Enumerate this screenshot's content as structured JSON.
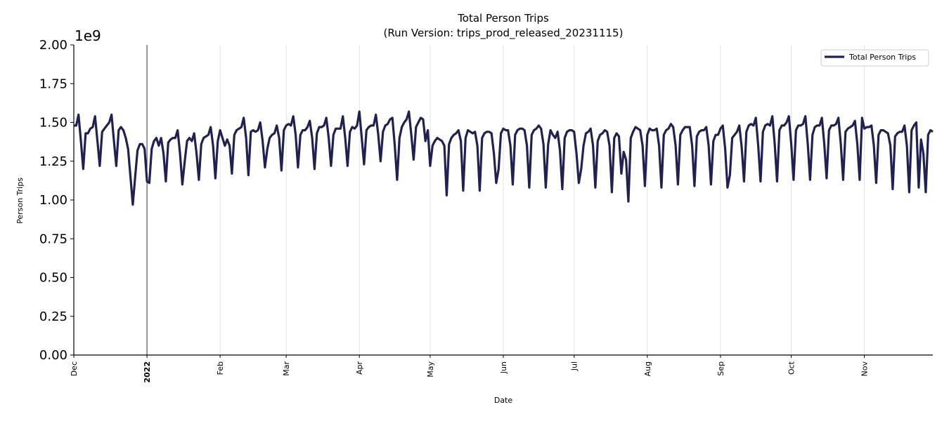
{
  "chart_data": {
    "type": "line",
    "title": "Total Person Trips",
    "subtitle": "(Run Version: trips_prod_released_20231115)",
    "xlabel": "Date",
    "ylabel": "Person Trips",
    "y_offset_label": "1e9",
    "ylim": [
      0,
      2.0
    ],
    "yticks": [
      "0.00",
      "0.25",
      "0.50",
      "0.75",
      "1.00",
      "1.25",
      "1.50",
      "1.75",
      "2.00"
    ],
    "xlim": [
      "2021-12-01",
      "2022-11-30"
    ],
    "xticks": [
      {
        "date": "2021-12-01",
        "label": "Dec",
        "bold": false
      },
      {
        "date": "2022-01-01",
        "label": "2022",
        "bold": true
      },
      {
        "date": "2022-02-01",
        "label": "Feb",
        "bold": false
      },
      {
        "date": "2022-03-01",
        "label": "Mar",
        "bold": false
      },
      {
        "date": "2022-04-01",
        "label": "Apr",
        "bold": false
      },
      {
        "date": "2022-05-01",
        "label": "May",
        "bold": false
      },
      {
        "date": "2022-06-01",
        "label": "Jun",
        "bold": false
      },
      {
        "date": "2022-07-01",
        "label": "Jul",
        "bold": false
      },
      {
        "date": "2022-08-01",
        "label": "Aug",
        "bold": false
      },
      {
        "date": "2022-09-01",
        "label": "Sep",
        "bold": false
      },
      {
        "date": "2022-10-01",
        "label": "Oct",
        "bold": false
      },
      {
        "date": "2022-11-01",
        "label": "Nov",
        "bold": false
      }
    ],
    "grid": "vertical-monthly",
    "legend": "top-right",
    "series": [
      {
        "name": "Total Person Trips",
        "color": "#1f2152",
        "start_date": "2021-12-01",
        "frequency": "daily",
        "values": [
          1.48,
          1.48,
          1.55,
          1.38,
          1.2,
          1.43,
          1.43,
          1.46,
          1.47,
          1.54,
          1.38,
          1.22,
          1.44,
          1.46,
          1.48,
          1.5,
          1.55,
          1.38,
          1.22,
          1.45,
          1.47,
          1.45,
          1.4,
          1.33,
          1.15,
          0.97,
          1.15,
          1.32,
          1.36,
          1.36,
          1.33,
          1.12,
          1.11,
          1.33,
          1.38,
          1.4,
          1.35,
          1.4,
          1.3,
          1.12,
          1.37,
          1.39,
          1.4,
          1.4,
          1.45,
          1.3,
          1.1,
          1.25,
          1.38,
          1.4,
          1.38,
          1.43,
          1.3,
          1.13,
          1.36,
          1.4,
          1.41,
          1.42,
          1.47,
          1.35,
          1.14,
          1.38,
          1.45,
          1.4,
          1.35,
          1.39,
          1.35,
          1.17,
          1.42,
          1.45,
          1.46,
          1.47,
          1.53,
          1.4,
          1.16,
          1.44,
          1.45,
          1.44,
          1.45,
          1.5,
          1.38,
          1.21,
          1.33,
          1.4,
          1.42,
          1.43,
          1.48,
          1.4,
          1.19,
          1.45,
          1.48,
          1.49,
          1.48,
          1.54,
          1.42,
          1.21,
          1.42,
          1.45,
          1.45,
          1.47,
          1.51,
          1.4,
          1.2,
          1.43,
          1.47,
          1.47,
          1.48,
          1.53,
          1.4,
          1.22,
          1.42,
          1.46,
          1.46,
          1.46,
          1.54,
          1.4,
          1.22,
          1.44,
          1.47,
          1.46,
          1.48,
          1.57,
          1.4,
          1.23,
          1.45,
          1.47,
          1.48,
          1.48,
          1.55,
          1.42,
          1.25,
          1.44,
          1.48,
          1.49,
          1.52,
          1.53,
          1.35,
          1.13,
          1.4,
          1.47,
          1.5,
          1.52,
          1.57,
          1.42,
          1.26,
          1.47,
          1.5,
          1.53,
          1.52,
          1.38,
          1.45,
          1.22,
          1.35,
          1.38,
          1.4,
          1.39,
          1.38,
          1.35,
          1.03,
          1.36,
          1.4,
          1.42,
          1.43,
          1.45,
          1.38,
          1.06,
          1.4,
          1.45,
          1.44,
          1.43,
          1.44,
          1.35,
          1.06,
          1.4,
          1.43,
          1.44,
          1.44,
          1.43,
          1.3,
          1.11,
          1.2,
          1.43,
          1.46,
          1.45,
          1.45,
          1.35,
          1.1,
          1.42,
          1.45,
          1.46,
          1.46,
          1.45,
          1.35,
          1.08,
          1.42,
          1.45,
          1.46,
          1.48,
          1.46,
          1.36,
          1.08,
          1.36,
          1.45,
          1.42,
          1.4,
          1.44,
          1.32,
          1.07,
          1.4,
          1.44,
          1.45,
          1.45,
          1.44,
          1.3,
          1.11,
          1.2,
          1.35,
          1.43,
          1.44,
          1.46,
          1.35,
          1.08,
          1.38,
          1.42,
          1.43,
          1.45,
          1.44,
          1.35,
          1.05,
          1.4,
          1.43,
          1.41,
          1.17,
          1.31,
          1.26,
          0.99,
          1.4,
          1.44,
          1.47,
          1.46,
          1.45,
          1.35,
          1.09,
          1.42,
          1.46,
          1.45,
          1.45,
          1.46,
          1.35,
          1.08,
          1.42,
          1.45,
          1.46,
          1.49,
          1.47,
          1.35,
          1.1,
          1.42,
          1.45,
          1.47,
          1.47,
          1.47,
          1.35,
          1.09,
          1.41,
          1.44,
          1.45,
          1.45,
          1.47,
          1.35,
          1.1,
          1.38,
          1.42,
          1.42,
          1.46,
          1.48,
          1.33,
          1.08,
          1.16,
          1.4,
          1.42,
          1.44,
          1.48,
          1.34,
          1.12,
          1.44,
          1.48,
          1.49,
          1.48,
          1.53,
          1.35,
          1.12,
          1.44,
          1.48,
          1.49,
          1.48,
          1.54,
          1.36,
          1.12,
          1.45,
          1.48,
          1.48,
          1.5,
          1.54,
          1.36,
          1.13,
          1.45,
          1.48,
          1.48,
          1.49,
          1.54,
          1.36,
          1.13,
          1.42,
          1.47,
          1.48,
          1.48,
          1.53,
          1.36,
          1.14,
          1.45,
          1.48,
          1.48,
          1.49,
          1.53,
          1.36,
          1.13,
          1.44,
          1.46,
          1.47,
          1.48,
          1.51,
          1.36,
          1.13,
          1.53,
          1.46,
          1.47,
          1.47,
          1.48,
          1.35,
          1.11,
          1.42,
          1.45,
          1.45,
          1.44,
          1.43,
          1.35,
          1.07,
          1.41,
          1.43,
          1.44,
          1.44,
          1.48,
          1.35,
          1.05,
          1.45,
          1.48,
          1.5,
          1.08,
          1.39,
          1.3,
          1.05,
          1.42,
          1.45,
          1.44
        ]
      }
    ]
  }
}
